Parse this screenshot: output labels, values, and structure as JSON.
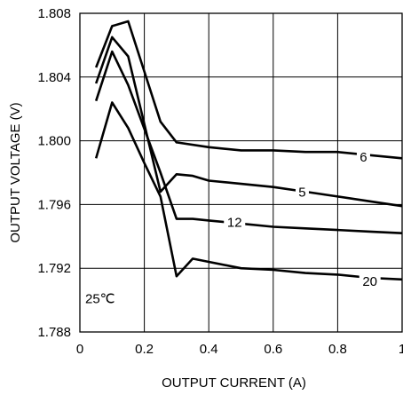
{
  "chart_data": {
    "type": "line",
    "title": "",
    "xlabel": "OUTPUT CURRENT (A)",
    "ylabel": "OUTPUT VOLTAGE (V)",
    "xlim": [
      0,
      1
    ],
    "ylim": [
      1.788,
      1.808
    ],
    "x_ticks": [
      0,
      0.2,
      0.4,
      0.6,
      0.8,
      1
    ],
    "x_tick_labels": [
      "0",
      "0.2",
      "0.4",
      "0.6",
      "0.8",
      "1"
    ],
    "y_ticks": [
      1.788,
      1.792,
      1.796,
      1.8,
      1.804,
      1.808
    ],
    "y_tick_labels": [
      "1.788",
      "1.792",
      "1.796",
      "1.800",
      "1.804",
      "1.808"
    ],
    "grid": true,
    "annotation": "25℃",
    "series": [
      {
        "name": "6",
        "label_at": [
          0.88,
          1.799
        ],
        "points": [
          [
            0.05,
            1.8046
          ],
          [
            0.1,
            1.8072
          ],
          [
            0.15,
            1.8075
          ],
          [
            0.25,
            1.8012
          ],
          [
            0.3,
            1.7999
          ],
          [
            0.4,
            1.7996
          ],
          [
            0.5,
            1.7994
          ],
          [
            0.6,
            1.7994
          ],
          [
            0.7,
            1.7993
          ],
          [
            0.8,
            1.7993
          ],
          [
            0.9,
            1.7991
          ],
          [
            1.0,
            1.7989
          ]
        ]
      },
      {
        "name": "5",
        "label_at": [
          0.69,
          1.7968
        ],
        "points": [
          [
            0.05,
            1.8036
          ],
          [
            0.1,
            1.8065
          ],
          [
            0.15,
            1.8053
          ],
          [
            0.25,
            1.7968
          ],
          [
            0.3,
            1.7979
          ],
          [
            0.35,
            1.7978
          ],
          [
            0.4,
            1.7975
          ],
          [
            0.5,
            1.7973
          ],
          [
            0.6,
            1.7971
          ],
          [
            0.7,
            1.7968
          ],
          [
            0.8,
            1.7965
          ],
          [
            0.9,
            1.7962
          ],
          [
            1.0,
            1.7959
          ]
        ]
      },
      {
        "name": "12",
        "label_at": [
          0.48,
          1.7949
        ],
        "points": [
          [
            0.05,
            1.8025
          ],
          [
            0.1,
            1.8056
          ],
          [
            0.15,
            1.8035
          ],
          [
            0.25,
            1.798
          ],
          [
            0.3,
            1.7951
          ],
          [
            0.35,
            1.7951
          ],
          [
            0.4,
            1.795
          ],
          [
            0.5,
            1.7948
          ],
          [
            0.6,
            1.7946
          ],
          [
            0.7,
            1.7945
          ],
          [
            0.8,
            1.7944
          ],
          [
            0.9,
            1.7943
          ],
          [
            1.0,
            1.7942
          ]
        ]
      },
      {
        "name": "20",
        "label_at": [
          0.9,
          1.7912
        ],
        "points": [
          [
            0.05,
            1.7989
          ],
          [
            0.1,
            1.8024
          ],
          [
            0.15,
            1.8008
          ],
          [
            0.2,
            1.7986
          ],
          [
            0.25,
            1.7965
          ],
          [
            0.3,
            1.7915
          ],
          [
            0.35,
            1.7926
          ],
          [
            0.4,
            1.7924
          ],
          [
            0.5,
            1.792
          ],
          [
            0.6,
            1.7919
          ],
          [
            0.7,
            1.7917
          ],
          [
            0.8,
            1.7916
          ],
          [
            0.9,
            1.7914
          ],
          [
            1.0,
            1.7913
          ]
        ]
      }
    ]
  }
}
